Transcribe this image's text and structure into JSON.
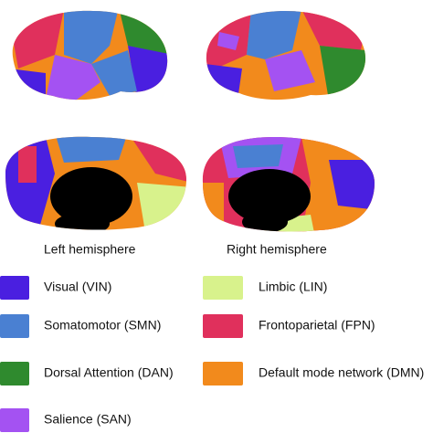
{
  "figure": {
    "hemisphere_labels": [
      "Left hemisphere",
      "Right hemisphere"
    ],
    "legend": [
      {
        "name": "Visual (VIN)",
        "color": "#4a1fe0"
      },
      {
        "name": "Somatomotor (SMN)",
        "color": "#4a80d2"
      },
      {
        "name": "Dorsal Attention (DAN)",
        "color": "#2f8a2e"
      },
      {
        "name": "Salience (SAN)",
        "color": "#a452f2"
      },
      {
        "name": "Limbic (LIN)",
        "color": "#d8f28c"
      },
      {
        "name": "Frontoparietal (FPN)",
        "color": "#e0305c"
      },
      {
        "name": "Default mode network (DMN)",
        "color": "#f28a1c"
      }
    ]
  }
}
